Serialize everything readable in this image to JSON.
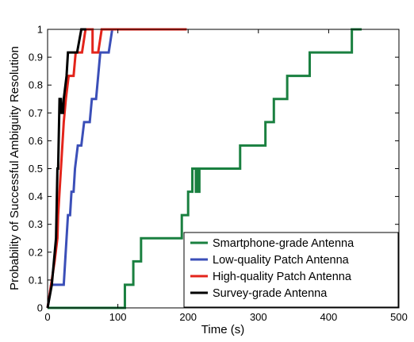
{
  "chart_data": {
    "type": "line",
    "step": true,
    "xlabel": "Time (s)",
    "ylabel": "Probability of Successful Ambiguity Resolution",
    "xlim": [
      0,
      500
    ],
    "ylim": [
      0,
      1
    ],
    "xticks": [
      "0",
      "100",
      "200",
      "300",
      "400",
      "500"
    ],
    "yticks": [
      "0",
      "0.1",
      "0.2",
      "0.3",
      "0.4",
      "0.5",
      "0.6",
      "0.7",
      "0.8",
      "0.9",
      "1"
    ],
    "grid": false,
    "legend_position": "bottom-right",
    "series": [
      {
        "name": "Smartphone-grade Antenna",
        "color": "#1a8040",
        "points": [
          [
            0,
            0
          ],
          [
            110,
            0
          ],
          [
            110,
            0.083
          ],
          [
            122,
            0.083
          ],
          [
            122,
            0.167
          ],
          [
            133,
            0.167
          ],
          [
            133,
            0.25
          ],
          [
            191,
            0.25
          ],
          [
            191,
            0.333
          ],
          [
            200,
            0.333
          ],
          [
            200,
            0.417
          ],
          [
            206,
            0.417
          ],
          [
            206,
            0.5
          ],
          [
            211,
            0.5
          ],
          [
            211,
            0.417
          ],
          [
            212,
            0.417
          ],
          [
            212,
            0.5
          ],
          [
            214,
            0.5
          ],
          [
            214,
            0.417
          ],
          [
            216,
            0.417
          ],
          [
            216,
            0.5
          ],
          [
            274,
            0.5
          ],
          [
            274,
            0.583
          ],
          [
            310,
            0.583
          ],
          [
            310,
            0.667
          ],
          [
            322,
            0.667
          ],
          [
            322,
            0.75
          ],
          [
            341,
            0.75
          ],
          [
            341,
            0.833
          ],
          [
            373,
            0.833
          ],
          [
            373,
            0.917
          ],
          [
            433,
            0.917
          ],
          [
            433,
            1
          ],
          [
            447,
            1
          ]
        ]
      },
      {
        "name": "Low-quality Patch Antenna",
        "color": "#3b4fb8",
        "points": [
          [
            0,
            0
          ],
          [
            5,
            0.083
          ],
          [
            23,
            0.083
          ],
          [
            25,
            0.167
          ],
          [
            27,
            0.25
          ],
          [
            29,
            0.333
          ],
          [
            32,
            0.333
          ],
          [
            34,
            0.417
          ],
          [
            37,
            0.417
          ],
          [
            39,
            0.5
          ],
          [
            43,
            0.583
          ],
          [
            48,
            0.583
          ],
          [
            52,
            0.667
          ],
          [
            60,
            0.667
          ],
          [
            63,
            0.75
          ],
          [
            69,
            0.75
          ],
          [
            72,
            0.833
          ],
          [
            75,
            0.917
          ],
          [
            87,
            0.917
          ],
          [
            92,
            1
          ],
          [
            95,
            1
          ]
        ]
      },
      {
        "name": "High-quality Patch Antenna",
        "color": "#e3241b",
        "points": [
          [
            0,
            0
          ],
          [
            5,
            0.083
          ],
          [
            10,
            0.167
          ],
          [
            14,
            0.25
          ],
          [
            15,
            0.333
          ],
          [
            17,
            0.417
          ],
          [
            19,
            0.5
          ],
          [
            21,
            0.583
          ],
          [
            23,
            0.667
          ],
          [
            26,
            0.75
          ],
          [
            30,
            0.833
          ],
          [
            37,
            0.833
          ],
          [
            40,
            0.917
          ],
          [
            49,
            0.917
          ],
          [
            54,
            1
          ],
          [
            64,
            1
          ],
          [
            64,
            0.917
          ],
          [
            72,
            0.917
          ],
          [
            77,
            1
          ],
          [
            198,
            1
          ]
        ]
      },
      {
        "name": "Survey-grade Antenna",
        "color": "#000000",
        "points": [
          [
            0,
            0
          ],
          [
            6,
            0.083
          ],
          [
            9,
            0.167
          ],
          [
            12,
            0.25
          ],
          [
            14,
            0.5
          ],
          [
            15,
            0.5
          ],
          [
            17,
            0.75
          ],
          [
            19,
            0.75
          ],
          [
            20,
            0.7
          ],
          [
            22,
            0.7
          ],
          [
            23,
            0.75
          ],
          [
            27,
            0.833
          ],
          [
            29,
            0.917
          ],
          [
            42,
            0.917
          ],
          [
            48,
            1
          ],
          [
            55,
            1
          ]
        ]
      }
    ]
  }
}
